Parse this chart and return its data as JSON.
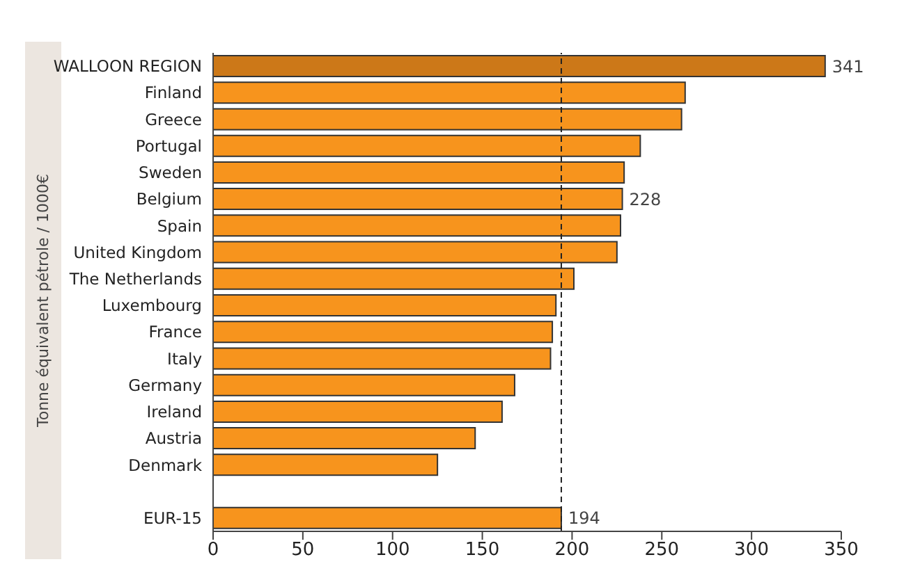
{
  "chart_data": {
    "type": "bar",
    "orientation": "horizontal",
    "ylabel": "Tonne équivalent pétrole / 1000€",
    "categories": [
      "WALLOON REGION",
      "Finland",
      "Greece",
      "Portugal",
      "Sweden",
      "Belgium",
      "Spain",
      "United Kingdom",
      "The Netherlands",
      "Luxembourg",
      "France",
      "Italy",
      "Germany",
      "Ireland",
      "Austria",
      "Denmark",
      null,
      "EUR-15"
    ],
    "values": [
      341,
      263,
      261,
      238,
      229,
      228,
      227,
      225,
      201,
      191,
      189,
      188,
      168,
      161,
      146,
      125,
      null,
      194
    ],
    "colors": [
      "#cc7818",
      "#f7941d",
      "#f7941d",
      "#f7941d",
      "#f7941d",
      "#f7941d",
      "#f7941d",
      "#f7941d",
      "#f7941d",
      "#f7941d",
      "#f7941d",
      "#f7941d",
      "#f7941d",
      "#f7941d",
      "#f7941d",
      "#f7941d",
      "#f7941d",
      "#f7941d"
    ],
    "value_labels": [
      "341",
      null,
      null,
      null,
      null,
      "228",
      null,
      null,
      null,
      null,
      null,
      null,
      null,
      null,
      null,
      null,
      null,
      "194"
    ],
    "xlim": [
      0,
      350
    ],
    "xticks": [
      0,
      50,
      100,
      150,
      200,
      250,
      300,
      350
    ],
    "ref_lines": [
      {
        "axis": "x",
        "value": 194,
        "color": "#222222",
        "line_style": "dashed"
      }
    ],
    "grid": false,
    "legend": false
  }
}
